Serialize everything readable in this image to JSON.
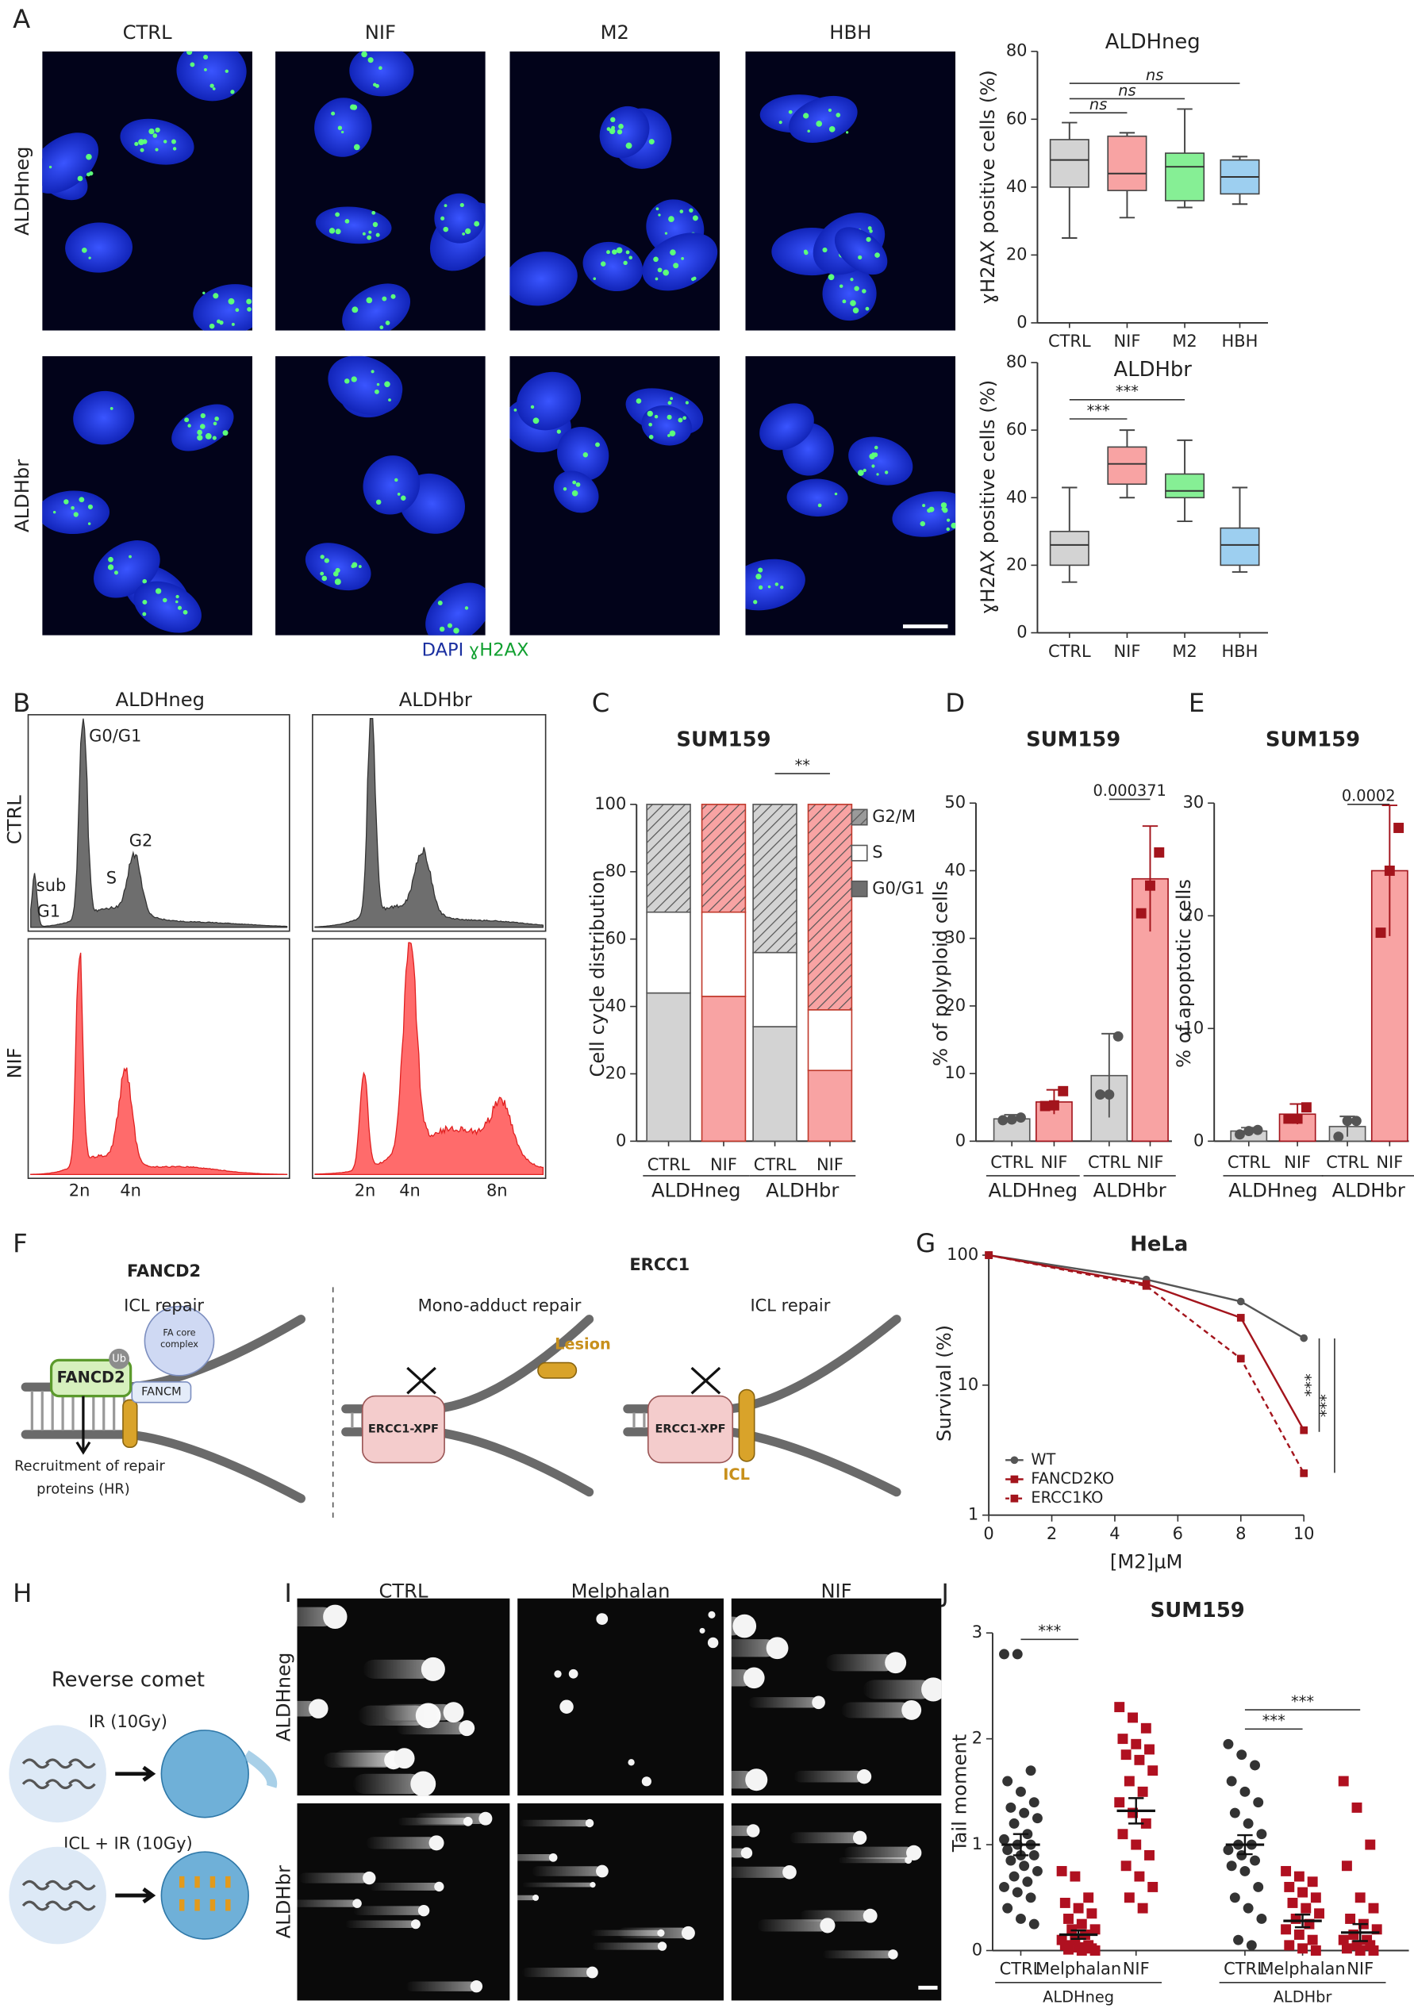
{
  "panel_labels": [
    "A",
    "B",
    "C",
    "D",
    "E",
    "F",
    "G",
    "H",
    "I",
    "J"
  ],
  "panel_a": {
    "columns": [
      "CTRL",
      "NIF",
      "M2",
      "HBH"
    ],
    "rows": [
      "ALDHneg",
      "ALDHbr"
    ],
    "stain_dapi": "DAPI",
    "stain_h2ax": "ɣH2AX"
  },
  "panel_b": {
    "columns": [
      "ALDHneg",
      "ALDHbr"
    ],
    "rows": [
      "CTRL",
      "NIF"
    ],
    "peaks": [
      "G0/G1",
      "S",
      "G2",
      "sub",
      "G1"
    ],
    "axis_left": [
      "2n",
      "4n"
    ],
    "axis_right": [
      "2n",
      "4n",
      "8n"
    ]
  },
  "panel_f": {
    "left_title": "FANCD2",
    "left_subtitle": "ICL repair",
    "right_title": "ERCC1",
    "mono_title": "Mono-adduct repair",
    "icl_title": "ICL repair",
    "lesion": "Lesion",
    "fancd2": "FANCD2",
    "ub": "Ub",
    "fa_core": [
      "FA core",
      "complex"
    ],
    "fancm": "FANCM",
    "recruitment": [
      "Recruitment of repair",
      "proteins (HR)"
    ],
    "ercc1_xpf_1": "ERCC1-XPF",
    "ercc1_xpf_2": "ERCC1-XPF",
    "icl": "ICL"
  },
  "panel_h": {
    "title": "Reverse comet",
    "ir": "IR (10Gy)",
    "icl_ir": "ICL + IR (10Gy)"
  },
  "panel_i": {
    "columns": [
      "CTRL",
      "Melphalan",
      "NIF"
    ],
    "rows": [
      "ALDHneg",
      "ALDHbr"
    ]
  },
  "chart_data": [
    {
      "type": "box",
      "title": "ALDHneg",
      "y_label": "ɣH2AX positive cells (%)",
      "categories": [
        "CTRL",
        "NIF",
        "M2",
        "HBH"
      ],
      "boxes": [
        {
          "min": 25,
          "q1": 40,
          "median": 48,
          "q3": 54,
          "max": 59,
          "color": "#d3d3d3"
        },
        {
          "min": 31,
          "q1": 39,
          "median": 44,
          "q3": 55,
          "max": 56,
          "color": "#f8a3a3"
        },
        {
          "min": 34,
          "q1": 36,
          "median": 46,
          "q3": 50,
          "max": 63,
          "color": "#86ef95"
        },
        {
          "min": 35,
          "q1": 38,
          "median": 43,
          "q3": 48,
          "max": 49,
          "color": "#9dcff0"
        }
      ],
      "ylim": [
        0,
        80
      ],
      "yticks": [
        0,
        20,
        40,
        60,
        80
      ],
      "annotations": [
        "ns",
        "ns",
        "ns"
      ]
    },
    {
      "type": "box",
      "title": "ALDHbr",
      "y_label": "ɣH2AX positive cells (%)",
      "categories": [
        "CTRL",
        "NIF",
        "M2",
        "HBH"
      ],
      "boxes": [
        {
          "min": 15,
          "q1": 20,
          "median": 26,
          "q3": 30,
          "max": 43,
          "color": "#d3d3d3"
        },
        {
          "min": 40,
          "q1": 44,
          "median": 50,
          "q3": 55,
          "max": 60,
          "color": "#f8a3a3"
        },
        {
          "min": 33,
          "q1": 40,
          "median": 42,
          "q3": 47,
          "max": 57,
          "color": "#86ef95"
        },
        {
          "min": 18,
          "q1": 20,
          "median": 26,
          "q3": 31,
          "max": 43,
          "color": "#9dcff0"
        }
      ],
      "ylim": [
        0,
        80
      ],
      "yticks": [
        0,
        20,
        40,
        60,
        80
      ],
      "annotations": [
        "***",
        "***"
      ]
    },
    {
      "type": "stacked",
      "title": "SUM159",
      "y_label": "Cell cycle distribution",
      "categories": [
        "CTRL",
        "NIF",
        "CTRL",
        "NIF"
      ],
      "groups": [
        "ALDHneg",
        "ALDHbr"
      ],
      "bar_colors": [
        "#d3d3d3",
        "#f8a3a3",
        "#d3d3d3",
        "#f8a3a3"
      ],
      "series": [
        {
          "name": "G0/G1",
          "color": "#6e6e6e",
          "values": [
            44,
            43,
            34,
            21
          ]
        },
        {
          "name": "S",
          "color": "#ffffff",
          "values": [
            24,
            25,
            22,
            18
          ]
        },
        {
          "name": "G2/M",
          "color": "#9a9a9a",
          "values": [
            32,
            32,
            44,
            61
          ]
        }
      ],
      "ylim": [
        0,
        100
      ],
      "yticks": [
        0,
        20,
        40,
        60,
        80,
        100
      ],
      "annotations": [
        "**"
      ]
    },
    {
      "type": "bardot",
      "title": "SUM159",
      "y_label": "% of polyploid cells",
      "categories": [
        "CTRL",
        "NIF",
        "CTRL",
        "NIF"
      ],
      "groups": [
        "ALDHneg",
        "ALDHbr"
      ],
      "values": [
        3.3,
        5.8,
        9.7,
        38.8
      ],
      "errors": [
        0.6,
        1.8,
        6.2,
        7.8
      ],
      "colors": [
        "#d3d3d3",
        "#f8a3a3",
        "#d3d3d3",
        "#f8a3a3"
      ],
      "point_colors": [
        "#555555",
        "#a3141c",
        "#555555",
        "#a3141c"
      ],
      "points": [
        [
          3.1,
          3.2,
          3.5
        ],
        [
          5.2,
          5.3,
          7.4
        ],
        [
          6.9,
          6.9,
          15.5
        ],
        [
          33.7,
          37.8,
          42.7
        ]
      ],
      "ylim": [
        0,
        50
      ],
      "yticks": [
        0,
        10,
        20,
        30,
        40,
        50
      ],
      "annotations": [
        "0.000371"
      ]
    },
    {
      "type": "bardot",
      "title": "SUM159",
      "y_label": "% of apoptotic cells",
      "categories": [
        "CTRL",
        "NIF",
        "CTRL",
        "NIF"
      ],
      "groups": [
        "ALDHneg",
        "ALDHbr"
      ],
      "values": [
        0.9,
        2.4,
        1.3,
        24
      ],
      "errors": [
        0.3,
        0.9,
        0.9,
        5.8
      ],
      "colors": [
        "#d3d3d3",
        "#f8a3a3",
        "#d3d3d3",
        "#f8a3a3"
      ],
      "point_colors": [
        "#555555",
        "#a3141c",
        "#555555",
        "#a3141c"
      ],
      "points": [
        [
          0.6,
          0.9,
          1.0
        ],
        [
          2.0,
          2.0,
          3.0
        ],
        [
          0.4,
          1.8,
          1.8
        ],
        [
          18.5,
          24,
          27.8
        ]
      ],
      "ylim": [
        0,
        30
      ],
      "yticks": [
        0,
        10,
        20,
        30
      ],
      "annotations": [
        "0.0002"
      ]
    },
    {
      "type": "line",
      "title": "HeLa",
      "x_label": "[M2]μM",
      "y_label": "Survival (%)",
      "log_y": true,
      "x": [
        0,
        5,
        8,
        10
      ],
      "series": [
        {
          "name": "WT",
          "color": "#555555",
          "values": [
            100,
            65,
            44,
            23
          ],
          "marker": "circle",
          "line_style": "solid"
        },
        {
          "name": "FANCD2KO",
          "color": "#a3141c",
          "values": [
            100,
            60,
            33,
            4.5
          ],
          "marker": "square",
          "line_style": "solid"
        },
        {
          "name": "ERCC1KO",
          "color": "#a3141c",
          "values": [
            100,
            58,
            16,
            2.1
          ],
          "marker": "square",
          "line_style": "dashed"
        }
      ],
      "xlim": [
        0,
        10
      ],
      "xticks": [
        0,
        2,
        4,
        6,
        8,
        10
      ],
      "ylim": [
        1,
        100
      ],
      "yticks": [
        1,
        10,
        100
      ],
      "annotations": [
        "***",
        "***"
      ]
    },
    {
      "type": "dot",
      "title": "SUM159",
      "y_label": "Tail moment",
      "categories": [
        "CTRL",
        "Melphalan",
        "NIF",
        "CTRL",
        "Melphalan",
        "NIF"
      ],
      "groups": [
        "ALDHneg",
        "ALDHbr"
      ],
      "values": [
        1.0,
        0.15,
        1.32,
        1.0,
        0.28,
        0.17
      ],
      "errors": [
        0.1,
        0.04,
        0.12,
        0.09,
        0.06,
        0.08
      ],
      "colors": [
        "#333333",
        "#b01020",
        "#b01020",
        "#333333",
        "#b01020",
        "#b01020"
      ],
      "markers": [
        "circle",
        "square",
        "square",
        "circle",
        "square",
        "square"
      ],
      "points": [
        [
          2.8,
          2.8,
          1.7,
          1.6,
          1.5,
          1.4,
          1.35,
          1.3,
          1.25,
          1.2,
          1.1,
          1.05,
          1.0,
          1.0,
          0.95,
          0.9,
          0.9,
          0.85,
          0.8,
          0.75,
          0.7,
          0.65,
          0.6,
          0.55,
          0.5,
          0.4,
          0.3,
          0.25
        ],
        [
          0.75,
          0.7,
          0.5,
          0.45,
          0.4,
          0.35,
          0.3,
          0.25,
          0.2,
          0.2,
          0.15,
          0.1,
          0.1,
          0.05,
          0.05,
          0.03,
          0.02,
          0.01,
          0,
          0
        ],
        [
          2.3,
          2.2,
          2.1,
          2.0,
          1.95,
          1.9,
          1.85,
          1.8,
          1.7,
          1.6,
          1.5,
          1.4,
          1.3,
          1.2,
          1.1,
          1.0,
          0.9,
          0.8,
          0.7,
          0.6,
          0.5,
          0.4
        ],
        [
          1.95,
          1.85,
          1.75,
          1.6,
          1.5,
          1.4,
          1.3,
          1.2,
          1.1,
          1.0,
          1.0,
          0.95,
          0.9,
          0.85,
          0.8,
          0.75,
          0.6,
          0.5,
          0.4,
          0.3,
          0.1,
          0.05
        ],
        [
          0.75,
          0.7,
          0.65,
          0.6,
          0.55,
          0.5,
          0.45,
          0.4,
          0.35,
          0.3,
          0.25,
          0.2,
          0.15,
          0.1,
          0.05,
          0.02,
          0
        ],
        [
          1.6,
          1.35,
          1.0,
          0.8,
          0.5,
          0.4,
          0.3,
          0.25,
          0.2,
          0.15,
          0.1,
          0.1,
          0.05,
          0.05,
          0.02,
          0,
          0
        ]
      ],
      "ylim": [
        0,
        3
      ],
      "yticks": [
        0,
        1,
        2,
        3
      ],
      "annotations": [
        "***",
        "***",
        "***"
      ]
    }
  ]
}
